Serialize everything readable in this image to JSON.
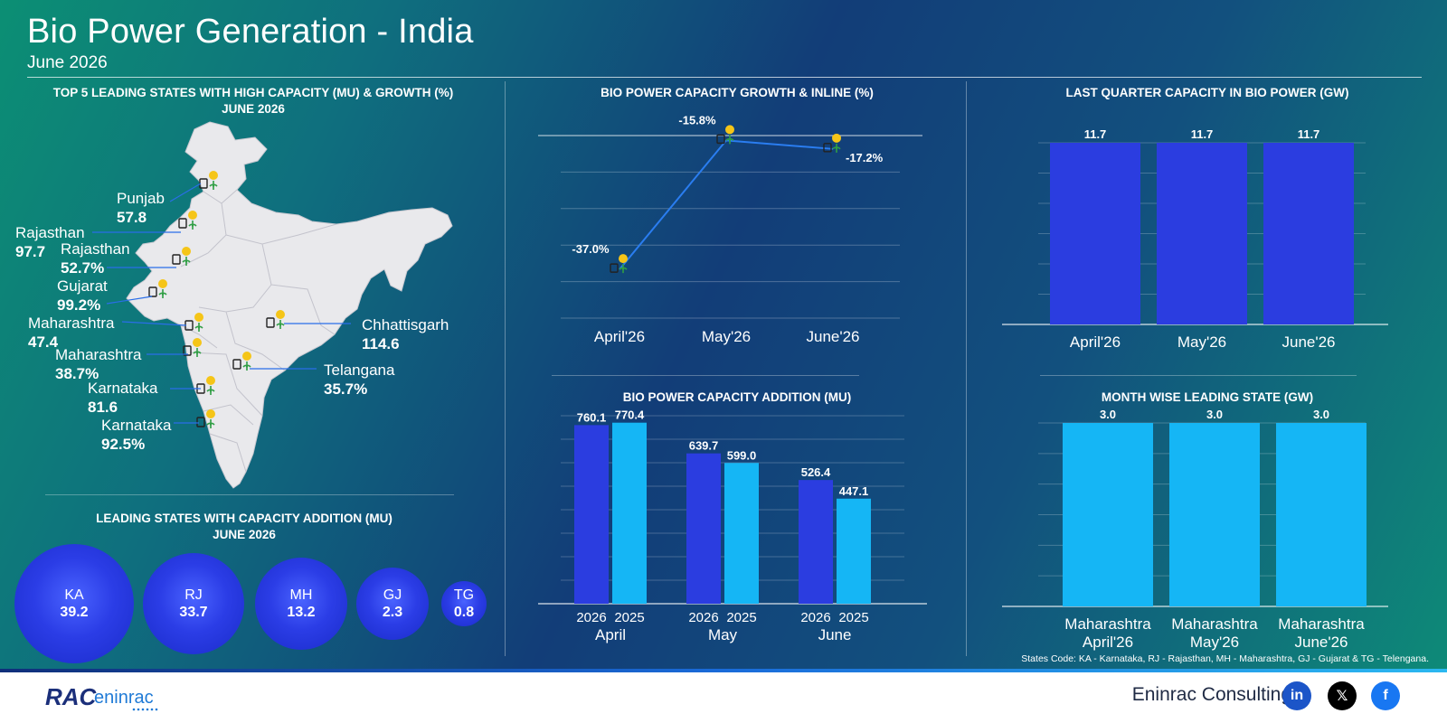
{
  "header": {
    "title": "Bio Power Generation - India",
    "subtitle": "June 2026"
  },
  "map_section": {
    "title_line1": "TOP 5 LEADING STATES WITH HIGH CAPACITY (MU) & GROWTH (%)",
    "title_line2": "JUNE 2026",
    "labels": [
      {
        "name": "Punjab",
        "value": "57.8"
      },
      {
        "name": "Rajasthan",
        "value": "97.7"
      },
      {
        "name": "Rajasthan",
        "value": "52.7%"
      },
      {
        "name": "Gujarat",
        "value": "99.2%"
      },
      {
        "name": "Maharashtra",
        "value": "47.4"
      },
      {
        "name": "Maharashtra",
        "value": "38.7%"
      },
      {
        "name": "Karnataka",
        "value": "81.6"
      },
      {
        "name": "Karnataka",
        "value": "92.5%"
      },
      {
        "name": "Chhattisgarh",
        "value": "114.6"
      },
      {
        "name": "Telangana",
        "value": "35.7%"
      }
    ]
  },
  "bubble_section": {
    "title_line1": "LEADING STATES WITH CAPACITY ADDITION (MU)",
    "title_line2": "JUNE 2026",
    "bubbles": [
      {
        "code": "KA",
        "value": "39.2"
      },
      {
        "code": "RJ",
        "value": "33.7"
      },
      {
        "code": "MH",
        "value": "13.2"
      },
      {
        "code": "GJ",
        "value": "2.3"
      },
      {
        "code": "TG",
        "value": "0.8"
      }
    ]
  },
  "chart_data": [
    {
      "type": "line",
      "title": "BIO POWER CAPACITY GROWTH & INLINE (%)",
      "categories": [
        "April'26",
        "May'26",
        "June'26"
      ],
      "values": [
        -37.0,
        -15.8,
        -17.2
      ],
      "value_labels": [
        "-37.0%",
        "-15.8%",
        "-17.2%"
      ],
      "ylim": [
        -45,
        -15
      ],
      "color": "#2a7df0",
      "grid": true
    },
    {
      "type": "bar",
      "title": "BIO POWER CAPACITY ADDITION (MU)",
      "groups": [
        "April",
        "May",
        "June"
      ],
      "series": [
        {
          "name": "2026",
          "values": [
            760.1,
            639.7,
            526.4
          ],
          "labels": [
            "760.1",
            "639.7",
            "526.4"
          ],
          "color": "#2b3de0"
        },
        {
          "name": "2025",
          "values": [
            770.4,
            599.0,
            447.1
          ],
          "labels": [
            "770.4",
            "599.0",
            "447.1"
          ],
          "color": "#15b6f5"
        }
      ],
      "ylim": [
        0,
        800
      ],
      "grid": true
    },
    {
      "type": "bar",
      "title": "LAST QUARTER CAPACITY IN BIO POWER (GW)",
      "categories": [
        "April'26",
        "May'26",
        "June'26"
      ],
      "values": [
        11.7,
        11.7,
        11.7
      ],
      "labels": [
        "11.7",
        "11.7",
        "11.7"
      ],
      "ylim": [
        0,
        11.7
      ],
      "color": "#2b3de0",
      "grid": true
    },
    {
      "type": "bar",
      "title": "MONTH WISE LEADING STATE (GW)",
      "categories": [
        "Maharashtra",
        "Maharashtra",
        "Maharashtra"
      ],
      "sublabels": [
        "April'26",
        "May'26",
        "June'26"
      ],
      "values": [
        3.0,
        3.0,
        3.0
      ],
      "labels": [
        "3.0",
        "3.0",
        "3.0"
      ],
      "ylim": [
        0,
        3.0
      ],
      "color": "#15b6f5",
      "grid": true
    }
  ],
  "footer": {
    "note": "States Code: KA - Karnataka, RJ - Rajasthan, MH - Maharashtra, GJ - Gujarat & TG - Telengana.",
    "brand": "Eninrac Consulting",
    "logo_text": "eninrac",
    "social": [
      {
        "icon": "linkedin-icon",
        "glyph": "in",
        "color": "#1c55c8"
      },
      {
        "icon": "x-icon",
        "glyph": "𝕏",
        "color": "#000000"
      },
      {
        "icon": "facebook-icon",
        "glyph": "f",
        "color": "#1877f2"
      }
    ]
  }
}
